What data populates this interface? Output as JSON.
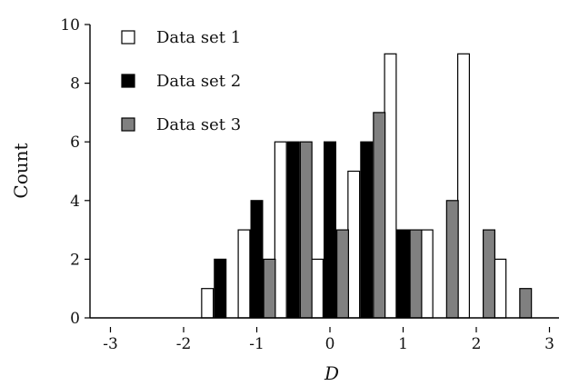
{
  "chart_data": {
    "type": "bar",
    "xlabel": "D",
    "ylabel": "Count",
    "xlim": [
      -3.3,
      3.3
    ],
    "ylim": [
      0,
      10
    ],
    "xticks": [
      -3,
      -2,
      -1,
      0,
      1,
      2,
      3
    ],
    "yticks": [
      0,
      2,
      4,
      6,
      8,
      10
    ],
    "bin_centers": [
      -1.5,
      -1.0,
      -0.5,
      0.0,
      0.5,
      1.0,
      1.5,
      2.0,
      2.5
    ],
    "grid": false,
    "legend_position": "top-left",
    "series": [
      {
        "name": "Data set 1",
        "color": "#ffffff",
        "values": [
          1,
          3,
          6,
          2,
          5,
          9,
          3,
          9,
          2
        ]
      },
      {
        "name": "Data set 2",
        "color": "#000000",
        "values": [
          2,
          4,
          6,
          6,
          6,
          3,
          0,
          0,
          0
        ]
      },
      {
        "name": "Data set 3",
        "color": "#808080",
        "values": [
          0,
          2,
          6,
          3,
          7,
          3,
          4,
          3,
          1
        ]
      }
    ]
  }
}
